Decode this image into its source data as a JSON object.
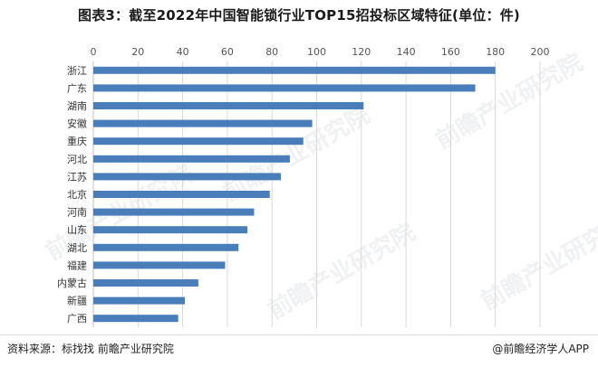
{
  "title": "图表3：截至2022年中国智能锁行业TOP15招投标区域特征(单位：件)",
  "source": "资料来源：标找找 前瞻产业研究院",
  "brand": "@前瞻经济学人APP",
  "watermark": "前瞻产业研究院",
  "colors": {
    "bar": "#4a7ebb",
    "grid": "#d9d9d9",
    "text": "#333333"
  },
  "chart_data": {
    "type": "bar",
    "orientation": "horizontal",
    "categories": [
      "浙江",
      "广东",
      "湖南",
      "安徽",
      "重庆",
      "河北",
      "江苏",
      "北京",
      "河南",
      "山东",
      "湖北",
      "福建",
      "内蒙古",
      "新疆",
      "广西"
    ],
    "values": [
      180,
      171,
      121,
      98,
      94,
      88,
      84,
      79,
      72,
      69,
      65,
      59,
      47,
      41,
      38
    ],
    "xlim": [
      0,
      200
    ],
    "xticks": [
      0,
      20,
      40,
      60,
      80,
      100,
      120,
      140,
      160,
      180,
      200
    ],
    "xaxis_position": "top",
    "grid": true
  }
}
